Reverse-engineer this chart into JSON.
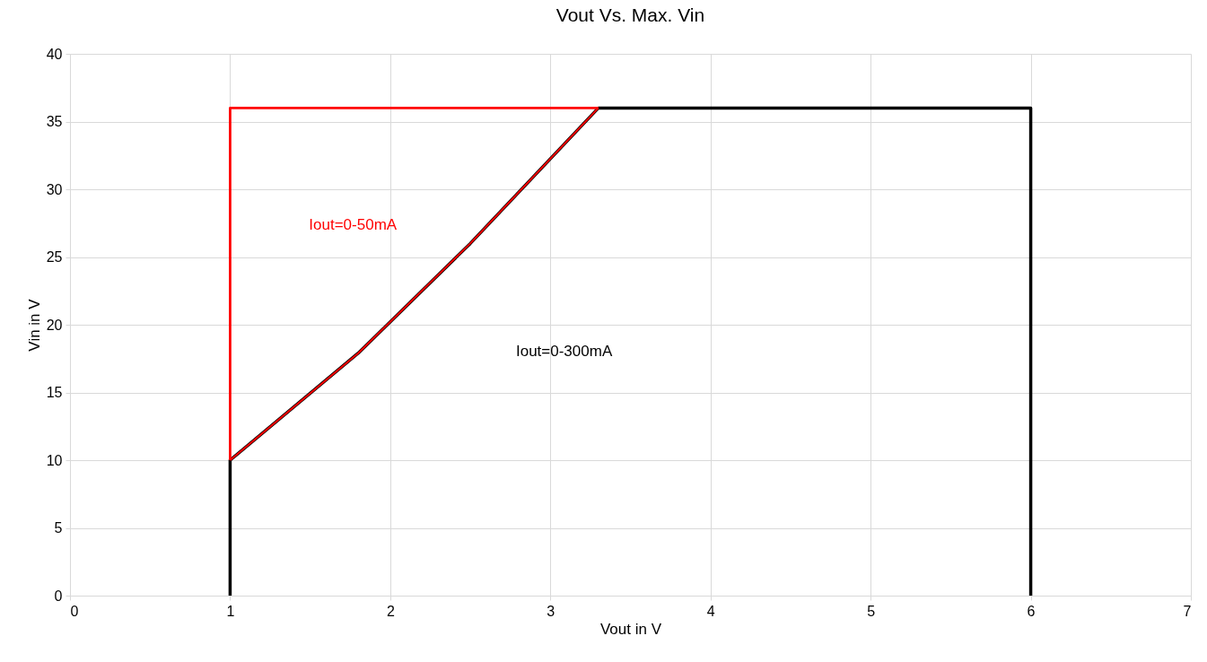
{
  "chart_data": {
    "type": "line",
    "title": "Vout Vs. Max. Vin",
    "xlabel": "Vout in V",
    "ylabel": "Vin in V",
    "series": [
      {
        "name": "Iout=0-300mA",
        "color": "#000000",
        "x": [
          1,
          1,
          1.8,
          2.5,
          3.3,
          6,
          6
        ],
        "values": [
          0,
          10,
          17.9,
          26,
          36,
          36,
          0
        ]
      },
      {
        "name": "Iout=0-50mA",
        "color": "#ff0000",
        "x": [
          1,
          1,
          3.3
        ],
        "values": [
          10,
          36,
          36
        ]
      },
      {
        "color": "#ff0000",
        "x": [
          1,
          1.8,
          2.5,
          3.3
        ],
        "values": [
          10,
          17.9,
          26,
          36
        ]
      }
    ],
    "xlim": [
      0,
      7
    ],
    "xticks": [
      0,
      1,
      2,
      3,
      4,
      5,
      6,
      7
    ],
    "ylim": [
      0,
      40
    ],
    "yticks": [
      0,
      5,
      10,
      15,
      20,
      25,
      30,
      35,
      40
    ],
    "grid": true,
    "legend": false,
    "marker": "none",
    "line_style": "solid"
  }
}
